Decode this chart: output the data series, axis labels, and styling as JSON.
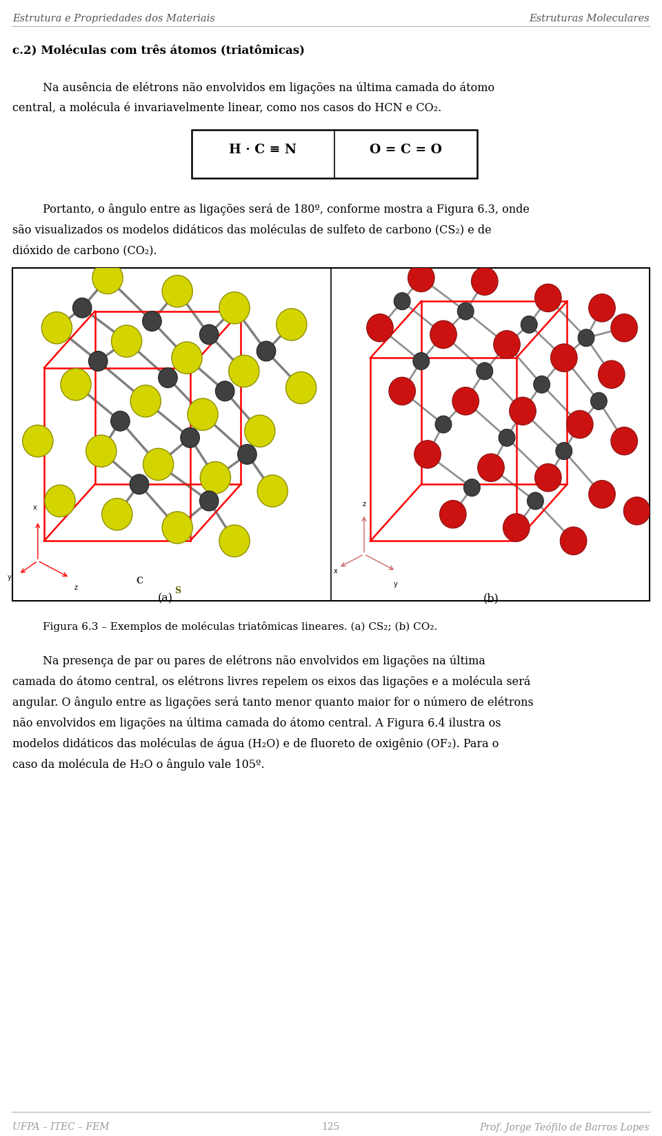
{
  "bg_color": "#ffffff",
  "header_left": "Estrutura e Propriedades dos Materiais",
  "header_right": "Estruturas Moleculares",
  "footer_left": "UFPA – ITEC – FEM",
  "footer_center": "125",
  "footer_right": "Prof. Jorge Teófilo de Barros Lopes",
  "section_title": "c.2) Moléculas com três átomos (triatômicas)",
  "para1_line1": "Na ausência de elétrons não envolvidos em ligações na última camada do átomo",
  "para1_line2": "central, a molécula é invariavelmente linear, como nos casos do HCN e CO₂.",
  "formula_left": "H · C ≡ N",
  "formula_right": "O = C = O",
  "para2_line1": "Portanto, o ângulo entre as ligações será de 180º, conforme mostra a Figura 6.3, onde",
  "para2_line2": "são visualizados os modelos didáticos das moléculas de sulfeto de carbono (CS₂) e de",
  "para2_line3": "dióxido de carbono (CO₂).",
  "fig_label_a": "(a)",
  "fig_label_b": "(b)",
  "fig_caption": "Figura 6.3 – Exemplos de moléculas triatômicas lineares. (a) CS₂; (b) CO₂.",
  "para3_line1": "Na presença de par ou pares de elétrons não envolvidos em ligações na última",
  "para3_line2": "camada do átomo central, os elétrons livres repelem os eixos das ligações e a molécula será",
  "para3_line3": "angular. O ângulo entre as ligações será tanto menor quanto maior for o número de elétrons",
  "para3_line4": "não envolvidos em ligações na última camada do átomo central. A Figura 6.4 ilustra os",
  "para3_line5": "modelos didáticos das moléculas de água (H₂O) e de fluoreto de oxigênio (OF₂). Para o",
  "para3_line6": "caso da molécula de H₂O o ângulo vale 105º.",
  "text_color": "#000000",
  "header_color": "#555555",
  "footer_color": "#999999"
}
